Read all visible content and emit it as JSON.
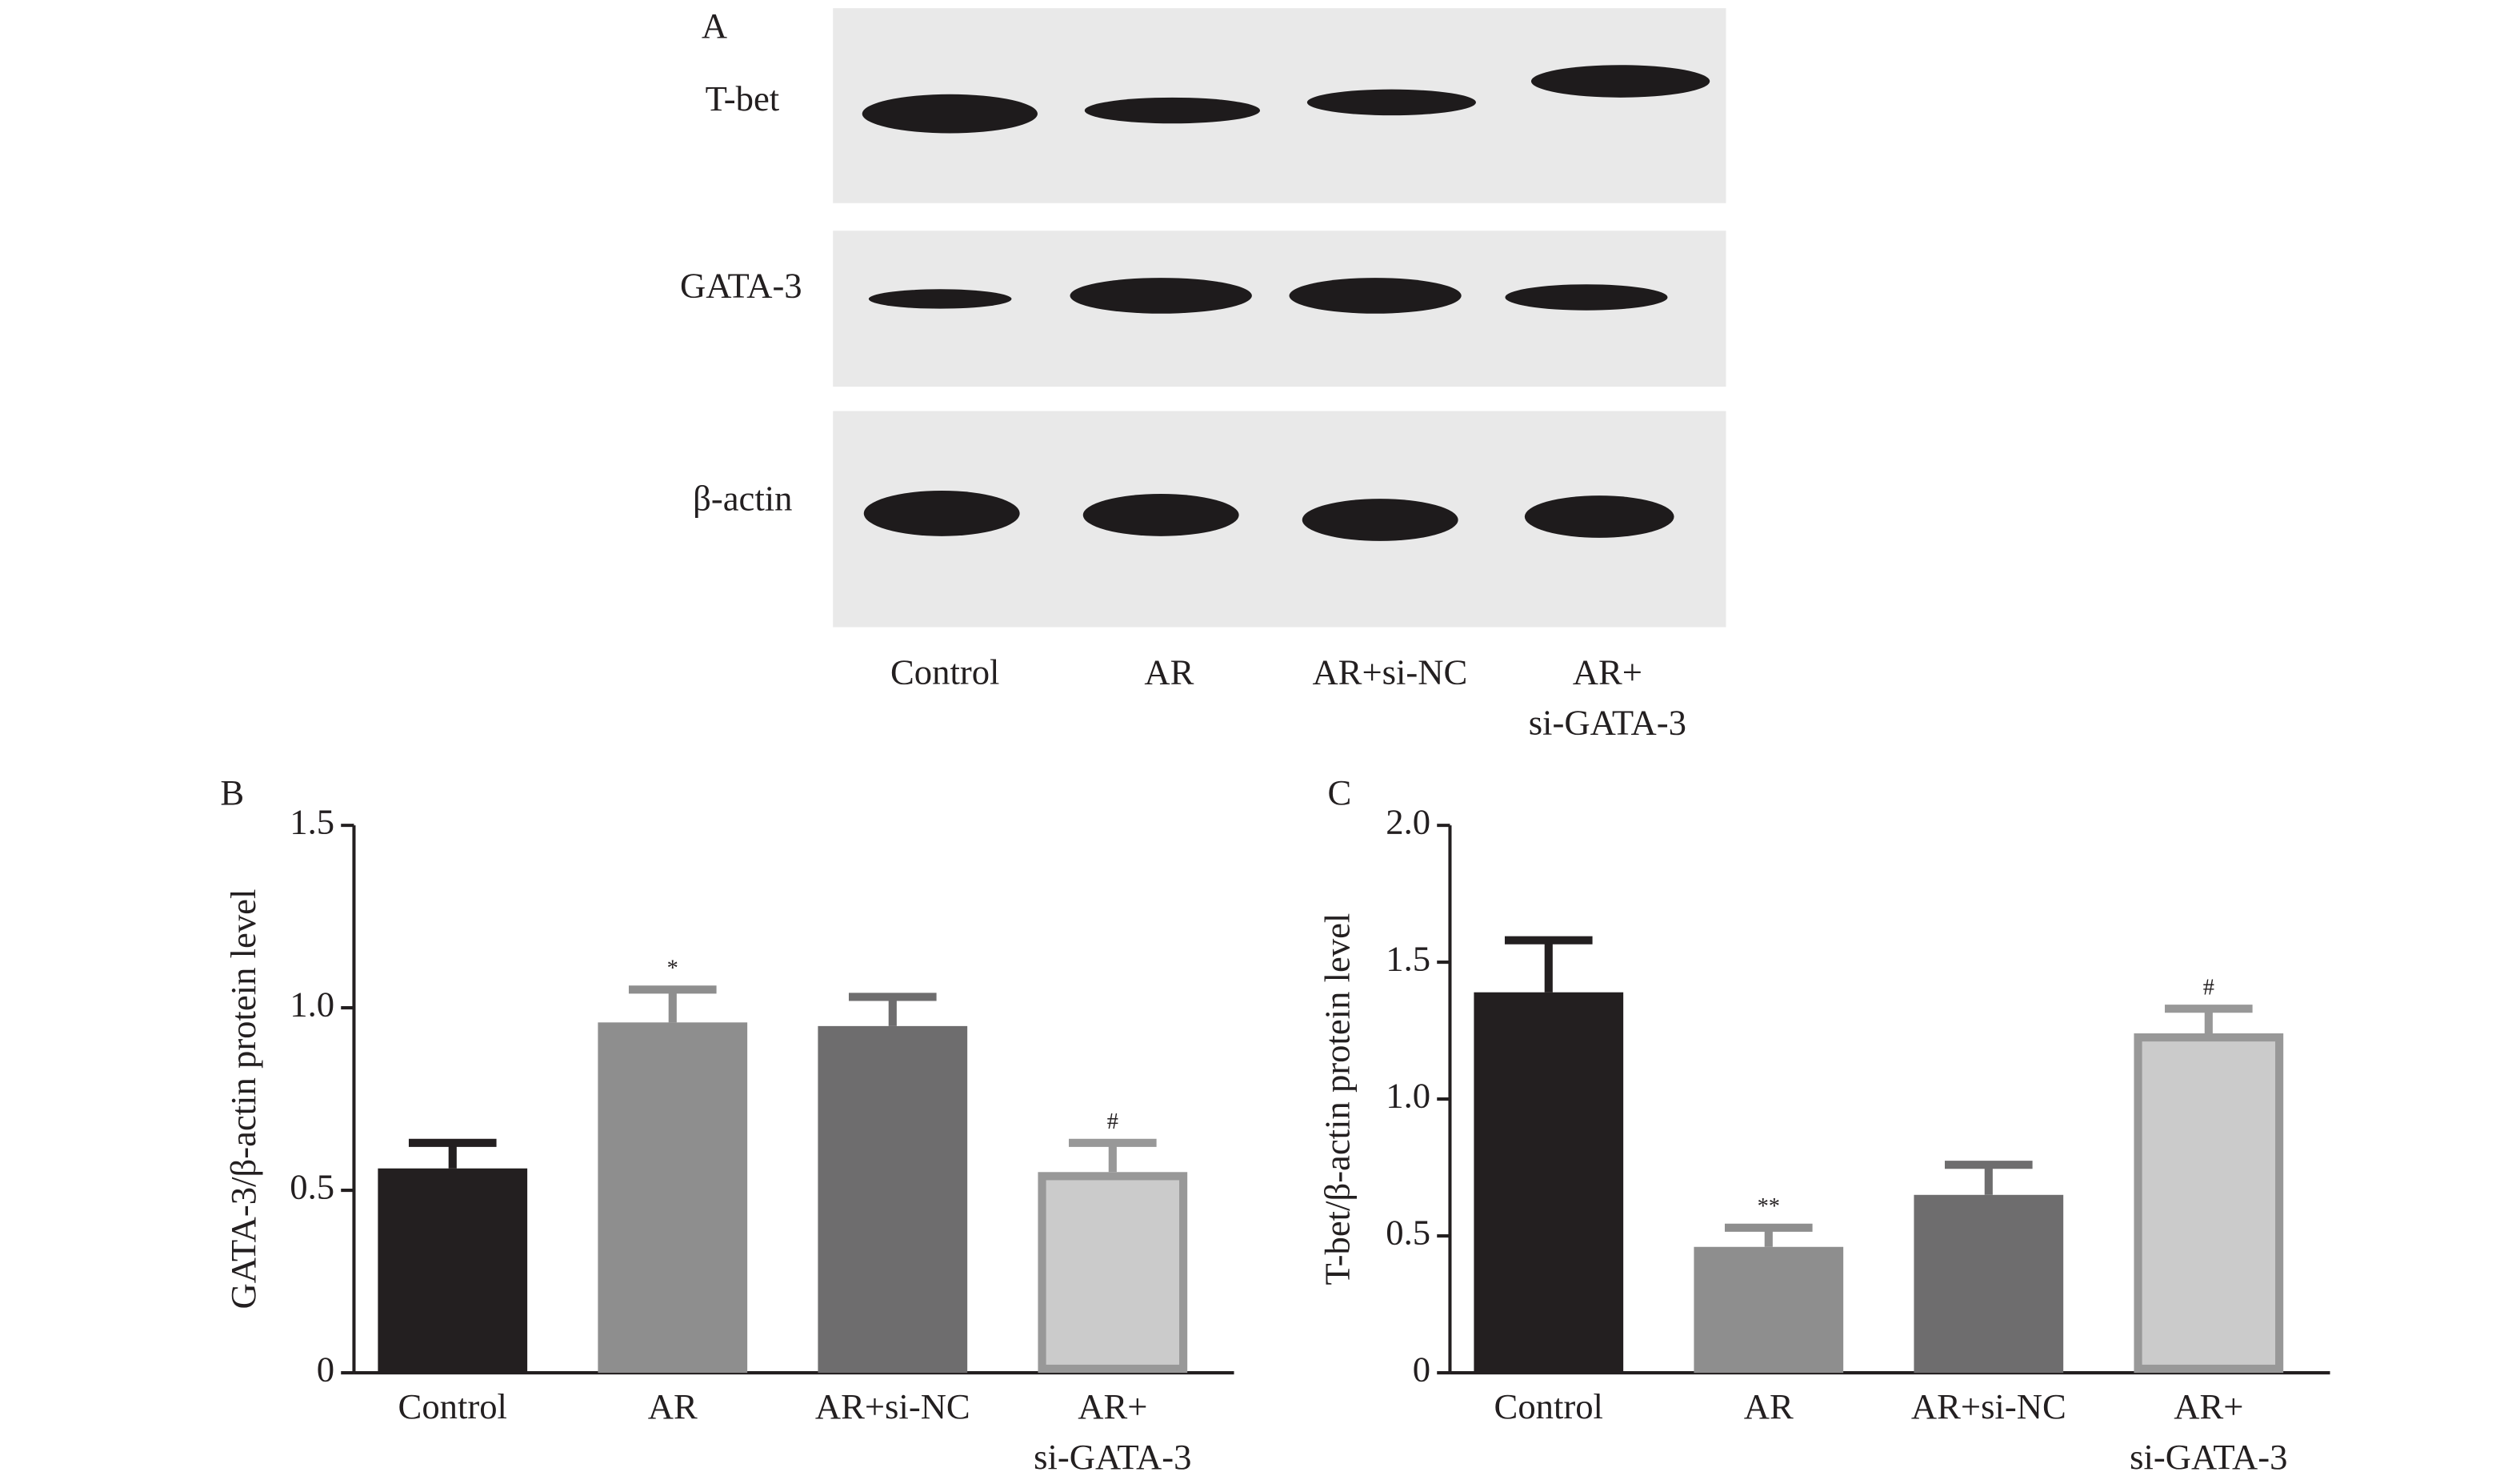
{
  "panel_a": {
    "label": "A",
    "rows": [
      "T-bet",
      "GATA-3",
      "β-actin"
    ],
    "lanes": [
      "Control",
      "AR",
      "AR+si-NC",
      [
        "AR+",
        "si-GATA-3"
      ]
    ]
  },
  "chart_data": [
    {
      "type": "bar",
      "panel": "B",
      "ylabel": "GATA-3/β-actin protein level",
      "categories": [
        "Control",
        "AR",
        "AR+si-NC",
        [
          "AR+",
          "si-GATA-3"
        ]
      ],
      "values": [
        0.56,
        0.96,
        0.95,
        0.55
      ],
      "errors": [
        0.07,
        0.09,
        0.08,
        0.08
      ],
      "annotations": [
        null,
        "*",
        null,
        "#"
      ],
      "colors": [
        "#231f20",
        "#8e8e8e",
        "#6e6d6e",
        "#cbcbcb"
      ],
      "edge_colors": [
        null,
        null,
        null,
        "#989898"
      ],
      "ylim": [
        0,
        1.5
      ],
      "yticks": [
        0,
        0.5,
        {
          "value": 1,
          "label": "1.0"
        },
        1.5
      ]
    },
    {
      "type": "bar",
      "panel": "C",
      "ylabel": "T-bet/β-actin protein level",
      "categories": [
        "Control",
        "AR",
        "AR+si-NC",
        [
          "AR+",
          "si-GATA-3"
        ]
      ],
      "values": [
        1.39,
        0.46,
        0.65,
        1.24
      ],
      "errors": [
        0.19,
        0.07,
        0.11,
        0.09
      ],
      "annotations": [
        null,
        "**",
        null,
        "#"
      ],
      "colors": [
        "#231f20",
        "#8e8e8e",
        "#6e6d6e",
        "#cbcbcb"
      ],
      "edge_colors": [
        null,
        null,
        null,
        "#989898"
      ],
      "ylim": [
        0,
        2
      ],
      "yticks": [
        0,
        0.5,
        {
          "value": 1,
          "label": "1.0"
        },
        1.5,
        {
          "value": 2,
          "label": "2.0"
        }
      ]
    }
  ]
}
